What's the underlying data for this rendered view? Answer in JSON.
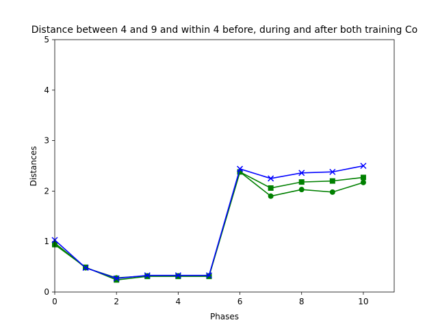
{
  "chart_data": {
    "type": "line",
    "title": "Distance between 4 and 9 and within 4 before, during and after both training Co",
    "xlabel": "Phases",
    "ylabel": "Distances",
    "xlim": [
      0,
      11
    ],
    "ylim": [
      0,
      5
    ],
    "xticks": [
      0,
      2,
      4,
      6,
      8,
      10
    ],
    "yticks": [
      0,
      1,
      2,
      3,
      4,
      5
    ],
    "grid": false,
    "x": [
      0,
      1,
      2,
      3,
      4,
      5,
      6,
      7,
      8,
      9,
      10
    ],
    "series": [
      {
        "marker": "circle",
        "color": "#008000",
        "values": [
          0.97,
          0.48,
          0.28,
          0.32,
          0.32,
          0.32,
          2.38,
          1.9,
          2.03,
          1.98,
          2.17
        ]
      },
      {
        "marker": "square",
        "color": "#008000",
        "values": [
          0.94,
          0.49,
          0.24,
          0.31,
          0.31,
          0.31,
          2.38,
          2.06,
          2.18,
          2.2,
          2.27
        ]
      },
      {
        "marker": "x",
        "color": "#0000ff",
        "values": [
          1.03,
          0.48,
          0.27,
          0.33,
          0.33,
          0.33,
          2.44,
          2.25,
          2.36,
          2.38,
          2.5
        ]
      }
    ]
  }
}
